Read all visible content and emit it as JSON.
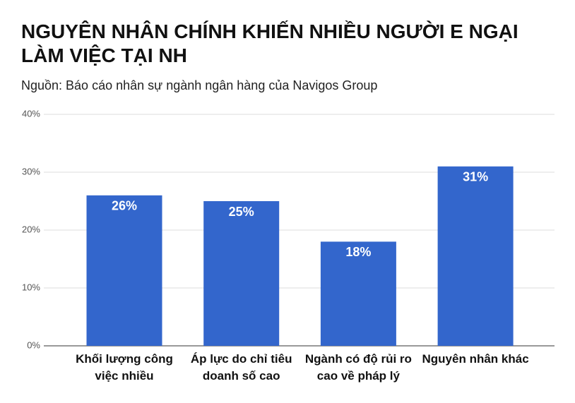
{
  "chart_data": {
    "type": "bar",
    "title": "NGUYÊN NHÂN CHÍNH KHIẾN NHIỀU NGƯỜI E NGẠI LÀM VIỆC TẠI NH",
    "subtitle": "Nguồn: Báo cáo nhân sự ngành ngân hàng của Navigos Group",
    "categories": [
      "Khối lượng công việc nhiều",
      "Áp lực do chỉ tiêu doanh số cao",
      "Ngành có độ rủi ro cao về pháp lý",
      "Nguyên nhân khác"
    ],
    "values": [
      26,
      25,
      18,
      31
    ],
    "value_labels": [
      "26%",
      "25%",
      "18%",
      "31%"
    ],
    "color": "#3366cc",
    "ylim": [
      0,
      40
    ],
    "yticks": [
      {
        "value": 0,
        "label": "0%"
      },
      {
        "value": 10,
        "label": "10%"
      },
      {
        "value": 20,
        "label": "20%"
      },
      {
        "value": 30,
        "label": "30%"
      },
      {
        "value": 40,
        "label": "40%"
      }
    ],
    "grid": true
  }
}
